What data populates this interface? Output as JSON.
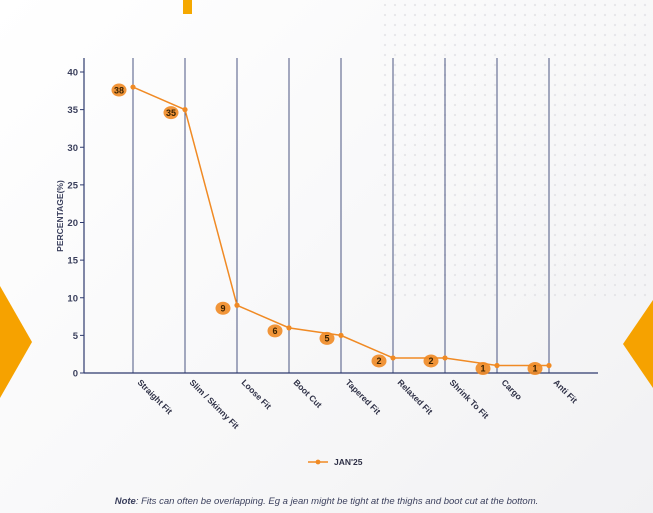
{
  "chart_data": {
    "type": "line",
    "categories": [
      "Straight Fit",
      "Slim / Skinny Fit",
      "Loose Fit",
      "Boot Cut",
      "Tapered Fit",
      "Relaxed Fit",
      "Shrink To Fit",
      "Cargo",
      "Anti Fit"
    ],
    "series": [
      {
        "name": "JAN'25",
        "values": [
          38,
          35,
          9,
          6,
          5,
          2,
          2,
          1,
          1
        ],
        "color": "#f08a24"
      }
    ],
    "ylabel": "PERCENTAGE(%)",
    "ylim": [
      0,
      40
    ],
    "yticks": [
      0,
      5,
      10,
      15,
      20,
      25,
      30,
      35,
      40
    ],
    "grid": "vertical lines at each category",
    "legend_position": "bottom"
  },
  "colors": {
    "line": "#f08a24",
    "gridline": "#2e3a6e",
    "marker_fill": "#f08a24",
    "accent": "#f6a200"
  },
  "note": {
    "prefix": "Note",
    "text": ": Fits can often be overlapping. Eg a jean might be tight at the thighs and boot cut at the bottom."
  }
}
